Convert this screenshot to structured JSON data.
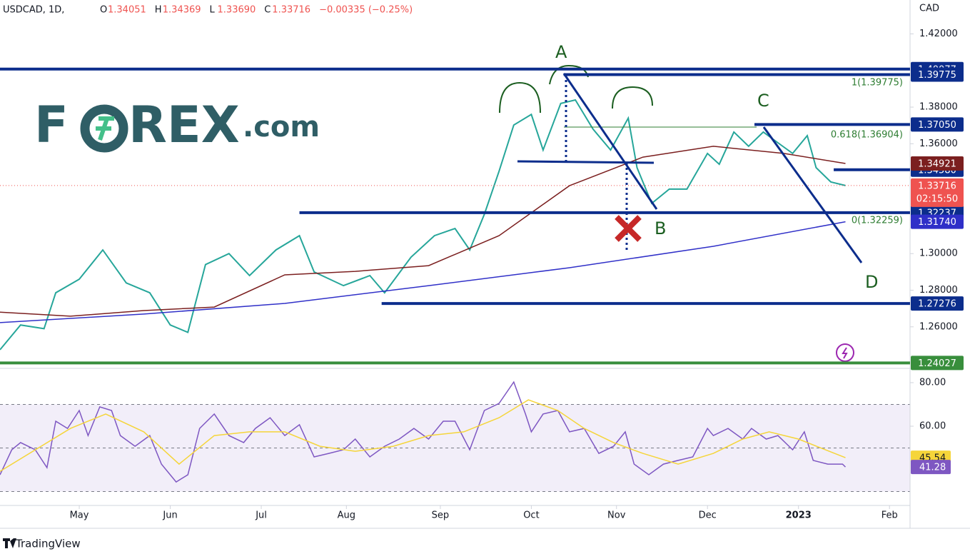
{
  "header": {
    "symbol": "USDCAD, 1D,",
    "ohlc": [
      {
        "label": "O",
        "value": "1.34051"
      },
      {
        "label": "H",
        "value": "1.34369"
      },
      {
        "label": "L",
        "value": "1.33690"
      },
      {
        "label": "C",
        "value": "1.33716"
      }
    ],
    "change": "−0.00335 (−0.25%)",
    "currency": "CAD"
  },
  "logo": {
    "brand": "F",
    "brand_rest": "REX",
    "suffix": ".com"
  },
  "footer": "TradingView",
  "annotations": [
    "A",
    "B",
    "C",
    "D"
  ],
  "fib_labels": [
    "1(1.39775)",
    "0.618(1.36904)",
    "0(1.32259)"
  ],
  "chart_data": [
    {
      "type": "line",
      "xlim": [
        0,
        310
      ],
      "ylim": [
        1.2377,
        1.4385
      ],
      "yticks": [
        {
          "value": 1.42,
          "label": "1.42000"
        },
        {
          "value": 1.38,
          "label": "1.38000"
        },
        {
          "value": 1.36,
          "label": "1.36000"
        },
        {
          "value": 1.3,
          "label": "1.30000"
        },
        {
          "value": 1.28,
          "label": "1.28000"
        },
        {
          "value": 1.26,
          "label": "1.26000"
        }
      ],
      "series": [
        {
          "color": "#26a69a",
          "x": [
            0,
            7,
            15,
            19,
            27,
            35,
            43,
            51,
            58,
            64,
            70,
            78,
            85,
            94,
            102,
            107,
            117,
            126,
            131,
            140,
            148,
            155,
            160,
            165,
            170,
            175,
            181,
            185,
            191,
            196,
            202,
            208,
            214,
            217,
            222,
            228,
            234,
            241,
            245,
            250,
            255,
            260,
            265,
            270,
            275,
            278,
            283,
            288
          ],
          "values": [
            1.2475,
            1.261,
            1.259,
            1.2786,
            1.286,
            1.302,
            1.284,
            1.2786,
            1.261,
            1.257,
            1.294,
            1.3,
            1.288,
            1.302,
            1.3098,
            1.29,
            1.2825,
            1.288,
            1.2786,
            1.298,
            1.3098,
            1.3137,
            1.302,
            1.3215,
            1.345,
            1.3702,
            1.376,
            1.3566,
            1.382,
            1.3839,
            1.368,
            1.3566,
            1.374,
            1.3469,
            1.3274,
            1.3352,
            1.3352,
            1.3547,
            1.3488,
            1.3664,
            1.3586,
            1.3664,
            1.3605,
            1.3547,
            1.3644,
            1.3469,
            1.3391,
            1.33716
          ]
        },
        {
          "color": "#7b1f1f",
          "x": [
            0,
            24,
            49,
            73,
            97,
            121,
            146,
            170,
            194,
            219,
            243,
            267,
            288
          ],
          "values": [
            1.268,
            1.2658,
            1.2689,
            1.2708,
            1.2884,
            1.2903,
            1.2934,
            1.3098,
            1.3371,
            1.3527,
            1.3586,
            1.3547,
            1.34921
          ]
        },
        {
          "color": "#3030c8",
          "x": [
            0,
            49,
            97,
            146,
            194,
            243,
            288
          ],
          "values": [
            1.2623,
            1.267,
            1.2728,
            1.2825,
            1.2923,
            1.304,
            1.3174
          ]
        }
      ],
      "levels": [
        {
          "value": 1.40077,
          "label": "1.40077",
          "color": "#0c2d8c",
          "start": 0
        },
        {
          "value": 1.39775,
          "label": "1.39775",
          "color": "#0c2d8c",
          "start": 192
        },
        {
          "value": 1.3705,
          "label": "1.37050",
          "color": "#0c2d8c",
          "start": 257
        },
        {
          "value": 1.3458,
          "label": "1.34580",
          "color": "#0c2d8c",
          "start": 284
        },
        {
          "value": 1.32237,
          "label": "1.32237",
          "color": "#0c2d8c",
          "start": 102
        },
        {
          "value": 1.27276,
          "label": "1.27276",
          "color": "#0c2d8c",
          "start": 130
        },
        {
          "value": 1.24027,
          "label": "1.24027",
          "color": "#388e3c",
          "start": 0
        }
      ],
      "price_labels": [
        {
          "value": 1.34921,
          "label": "1.34921",
          "color": "#7b1f1f"
        },
        {
          "value": 1.3174,
          "label": "1.31740",
          "color": "#2f2fc8"
        }
      ],
      "last_price": {
        "value": 1.33716,
        "label": "1.33716",
        "countdown": "02:15:50",
        "color": "#ef5350"
      }
    },
    {
      "type": "line",
      "xlim": [
        0,
        310
      ],
      "ylim": [
        24.6,
        85.9
      ],
      "yticks": [
        {
          "value": 80,
          "label": "80.00"
        },
        {
          "value": 60,
          "label": "60.00"
        }
      ],
      "bands": [
        30,
        70
      ],
      "midline": 50,
      "xticks": [
        {
          "value": 27,
          "label": "May"
        },
        {
          "value": 58,
          "label": "Jun"
        },
        {
          "value": 89,
          "label": "Jul"
        },
        {
          "value": 118,
          "label": "Aug"
        },
        {
          "value": 150,
          "label": "Sep"
        },
        {
          "value": 181,
          "label": "Oct"
        },
        {
          "value": 210,
          "label": "Nov"
        },
        {
          "value": 241,
          "label": "Dec"
        },
        {
          "value": 272,
          "label": "2023"
        },
        {
          "value": 303,
          "label": "Feb"
        }
      ],
      "series": [
        {
          "color": "#7e57c2",
          "x": [
            0,
            4,
            7,
            12,
            16,
            19,
            23,
            27,
            30,
            34,
            38,
            41,
            46,
            51,
            55,
            60,
            64,
            68,
            73,
            78,
            83,
            87,
            92,
            97,
            102,
            107,
            112,
            117,
            121,
            126,
            131,
            136,
            141,
            146,
            151,
            155,
            160,
            165,
            170,
            175,
            179,
            181,
            185,
            190,
            194,
            199,
            204,
            209,
            213,
            216,
            221,
            226,
            231,
            236,
            241,
            243,
            248,
            253,
            256,
            261,
            265,
            270,
            274,
            277,
            282,
            287,
            288
          ],
          "values": [
            37.7,
            49.2,
            52.5,
            49.2,
            41,
            62.3,
            59,
            67.2,
            55.7,
            68.9,
            67.2,
            55.7,
            50.8,
            55.7,
            42.6,
            34.4,
            37.7,
            59,
            65.6,
            55.7,
            52.5,
            59,
            63.9,
            55.7,
            60.7,
            45.9,
            47.5,
            49.2,
            54.1,
            45.9,
            50.8,
            54.1,
            59,
            54.1,
            62.3,
            62.3,
            49.2,
            67.2,
            70.5,
            80.3,
            65.6,
            57.4,
            65.6,
            67.2,
            57.4,
            59,
            47.5,
            50.8,
            57.4,
            42.6,
            37.7,
            42.6,
            44.3,
            45.9,
            59,
            55.7,
            59,
            54.1,
            59,
            54.1,
            55.7,
            49.2,
            57.4,
            44.3,
            42.6,
            42.6,
            41.28
          ]
        },
        {
          "color": "#f5d53a",
          "x": [
            0,
            24,
            36,
            49,
            61,
            73,
            85,
            97,
            109,
            121,
            134,
            146,
            158,
            170,
            180,
            190,
            199,
            209,
            219,
            231,
            243,
            253,
            262,
            272,
            288
          ],
          "values": [
            39.3,
            59,
            65.6,
            57.4,
            42.6,
            55.7,
            57.4,
            57.4,
            50.8,
            48.5,
            50.8,
            55.7,
            57.4,
            63.9,
            72.1,
            67.2,
            59,
            52.5,
            47.5,
            42.6,
            47.5,
            54.1,
            57.4,
            54.1,
            45.54
          ]
        }
      ]
    }
  ]
}
